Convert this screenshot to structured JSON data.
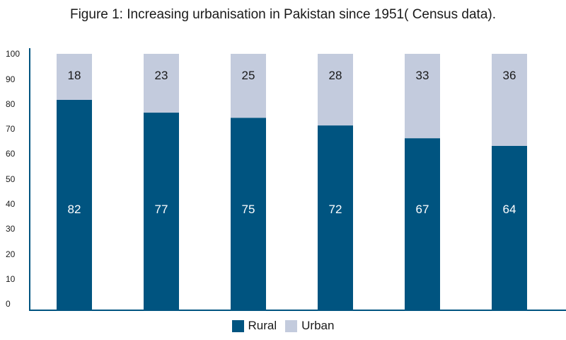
{
  "chart_data": {
    "type": "bar",
    "stacked": true,
    "title": "Figure 1: Increasing urbanisation in Pakistan since 1951( Census data).",
    "categories": [
      "",
      "",
      "",
      "",
      "",
      ""
    ],
    "series": [
      {
        "name": "Rural",
        "values": [
          82,
          77,
          75,
          72,
          67,
          64
        ],
        "color": "#005480"
      },
      {
        "name": "Urban",
        "values": [
          18,
          23,
          25,
          28,
          33,
          36
        ],
        "color": "#c3cbdd"
      }
    ],
    "ylim": [
      0,
      100
    ],
    "yticks": [
      "0",
      "10",
      "20",
      "30",
      "40",
      "50",
      "60",
      "70",
      "80",
      "90",
      "100"
    ],
    "data_labels": true,
    "grid": false,
    "legend": "bottom-center",
    "axis_color": "#005480"
  }
}
